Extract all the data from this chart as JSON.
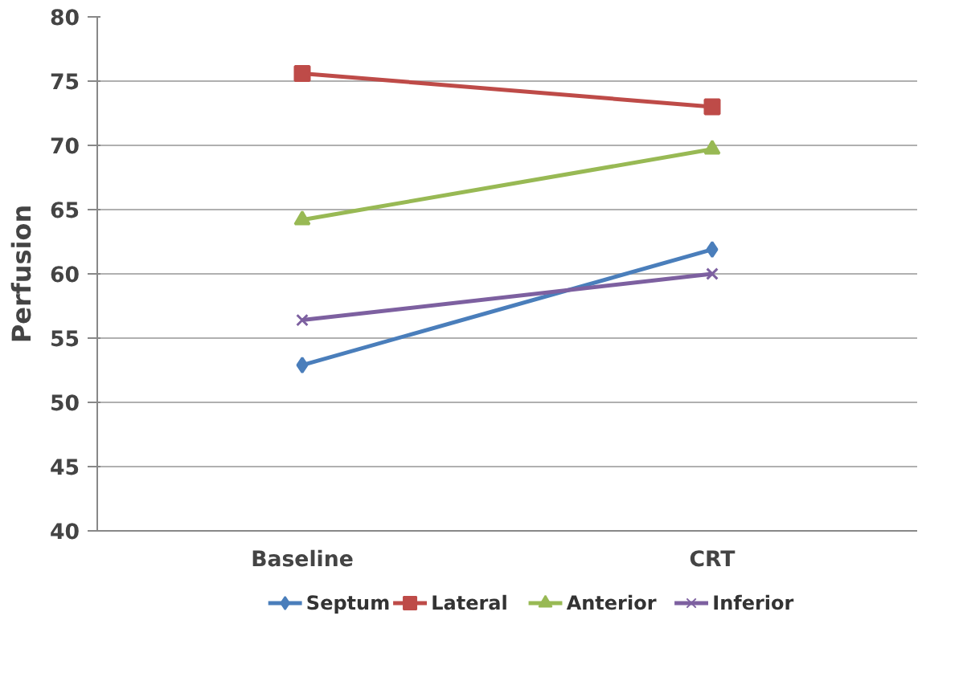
{
  "chart_data": {
    "type": "line",
    "ylabel": "Perfusion",
    "categories": [
      "Baseline",
      "CRT"
    ],
    "series": [
      {
        "name": "Septum",
        "color": "#4a7ebb",
        "marker": "diamond",
        "values": [
          52.9,
          61.9
        ]
      },
      {
        "name": "Lateral",
        "color": "#be4b48",
        "marker": "square",
        "values": [
          75.6,
          73.0
        ]
      },
      {
        "name": "Anterior",
        "color": "#98b954",
        "marker": "triangle",
        "values": [
          64.2,
          69.7
        ]
      },
      {
        "name": "Inferior",
        "color": "#7d60a0",
        "marker": "cross",
        "values": [
          56.4,
          60.0
        ]
      }
    ],
    "ylim": [
      40,
      80
    ],
    "yticks": [
      40,
      45,
      50,
      55,
      60,
      65,
      70,
      75,
      80
    ],
    "grid": "y",
    "legend": "bottom",
    "line_style": "solid"
  }
}
